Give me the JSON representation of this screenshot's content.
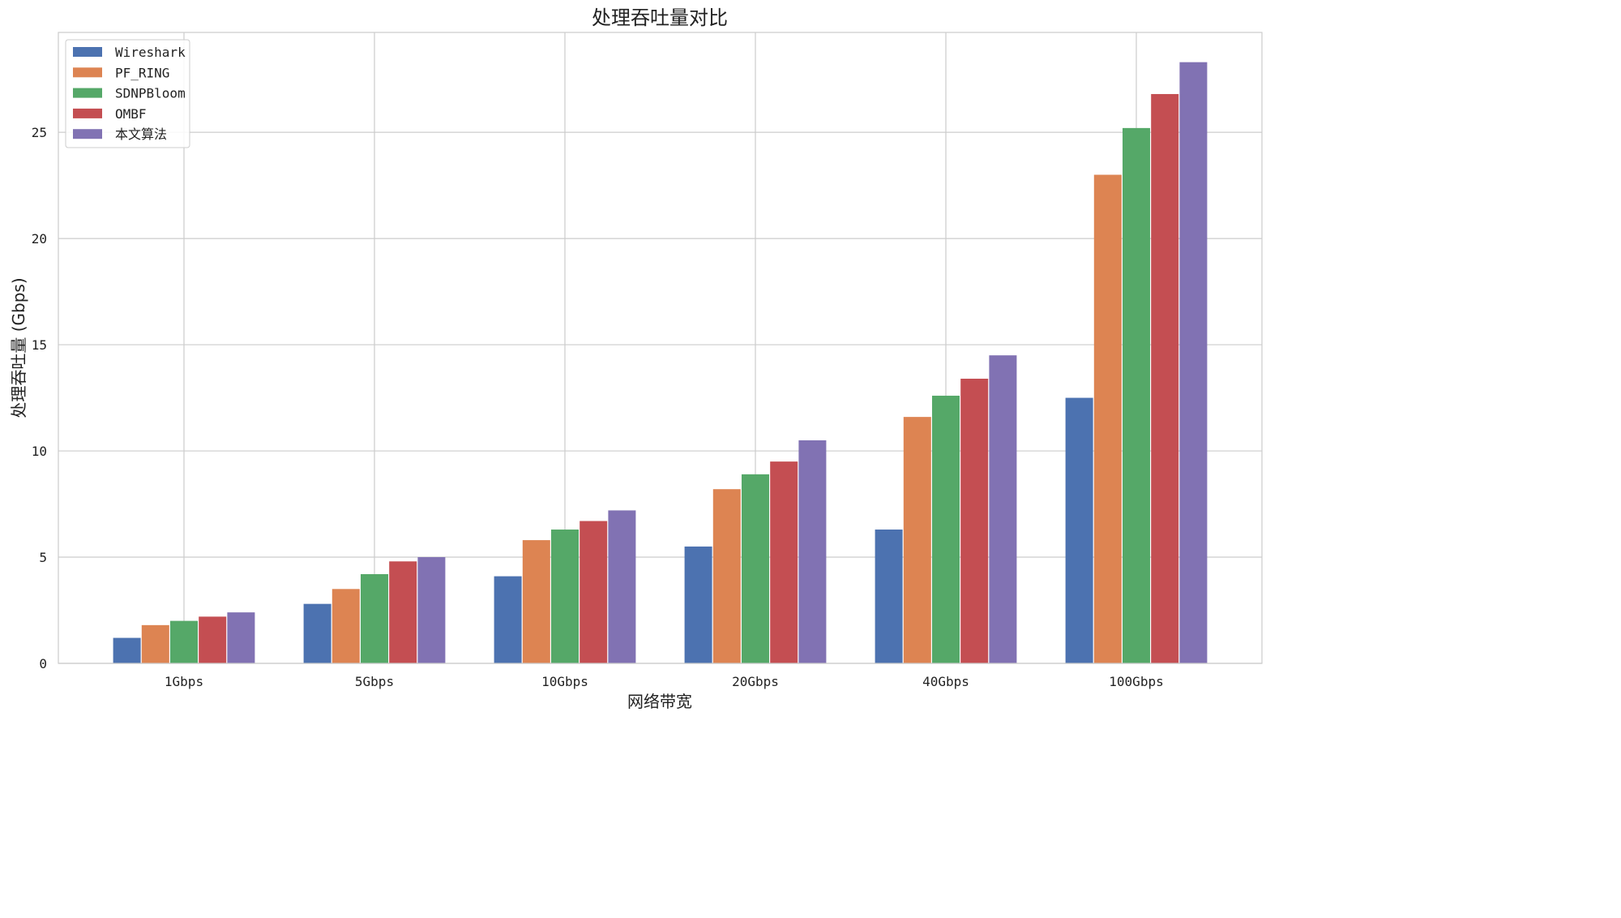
{
  "chart_data": {
    "type": "bar",
    "title": "处理吞吐量对比",
    "xlabel": "网络带宽",
    "ylabel": "处理吞吐量 (Gbps)",
    "categories": [
      "1Gbps",
      "5Gbps",
      "10Gbps",
      "20Gbps",
      "40Gbps",
      "100Gbps"
    ],
    "ylim": [
      0,
      29.7
    ],
    "yticks": [
      0,
      5,
      10,
      15,
      20,
      25
    ],
    "grid": true,
    "legend_position": "top-left",
    "series": [
      {
        "name": "Wireshark",
        "color": "#4c72b0",
        "values": [
          1.2,
          2.8,
          4.1,
          5.5,
          6.3,
          12.5
        ]
      },
      {
        "name": "PF_RING",
        "color": "#dd8452",
        "values": [
          1.8,
          3.5,
          5.8,
          8.2,
          11.6,
          23.0
        ]
      },
      {
        "name": "SDNPBloom",
        "color": "#55a868",
        "values": [
          2.0,
          4.2,
          6.3,
          8.9,
          12.6,
          25.2
        ]
      },
      {
        "name": "OMBF",
        "color": "#c44e52",
        "values": [
          2.2,
          4.8,
          6.7,
          9.5,
          13.4,
          26.8
        ]
      },
      {
        "name": "本文算法",
        "color": "#8172b3",
        "values": [
          2.4,
          5.0,
          7.2,
          10.5,
          14.5,
          28.3
        ]
      }
    ]
  }
}
